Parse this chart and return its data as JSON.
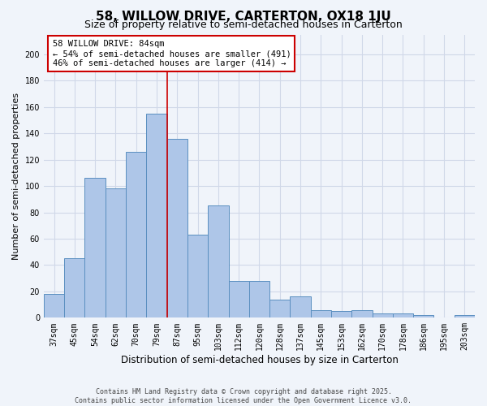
{
  "title_line1": "58, WILLOW DRIVE, CARTERTON, OX18 1JU",
  "title_line2": "Size of property relative to semi-detached houses in Carterton",
  "xlabel": "Distribution of semi-detached houses by size in Carterton",
  "ylabel": "Number of semi-detached properties",
  "categories": [
    "37sqm",
    "45sqm",
    "54sqm",
    "62sqm",
    "70sqm",
    "79sqm",
    "87sqm",
    "95sqm",
    "103sqm",
    "112sqm",
    "120sqm",
    "128sqm",
    "137sqm",
    "145sqm",
    "153sqm",
    "162sqm",
    "170sqm",
    "178sqm",
    "186sqm",
    "195sqm",
    "203sqm"
  ],
  "values": [
    18,
    45,
    106,
    98,
    126,
    155,
    136,
    63,
    85,
    28,
    28,
    14,
    16,
    6,
    5,
    6,
    3,
    3,
    2,
    0,
    2
  ],
  "bar_color": "#aec6e8",
  "bar_edge_color": "#5a8fc0",
  "annotation_text_line1": "58 WILLOW DRIVE: 84sqm",
  "annotation_text_line2": "← 54% of semi-detached houses are smaller (491)",
  "annotation_text_line3": "46% of semi-detached houses are larger (414) →",
  "annotation_box_color": "#ffffff",
  "annotation_box_edge_color": "#cc0000",
  "red_line_color": "#cc0000",
  "grid_color": "#d0d8e8",
  "background_color": "#f0f4fa",
  "ylim": [
    0,
    215
  ],
  "yticks": [
    0,
    20,
    40,
    60,
    80,
    100,
    120,
    140,
    160,
    180,
    200
  ],
  "footer_line1": "Contains HM Land Registry data © Crown copyright and database right 2025.",
  "footer_line2": "Contains public sector information licensed under the Open Government Licence v3.0.",
  "title1_fontsize": 11,
  "title2_fontsize": 9,
  "tick_fontsize": 7,
  "ylabel_fontsize": 8,
  "xlabel_fontsize": 8.5,
  "annotation_fontsize": 7.5,
  "footer_fontsize": 6
}
